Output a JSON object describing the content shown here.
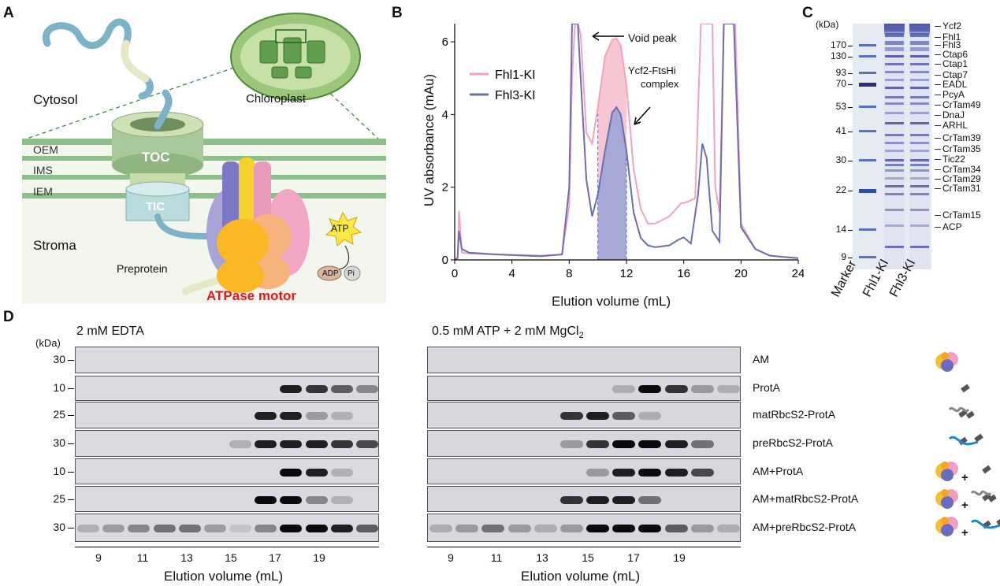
{
  "panelA": {
    "letter": "A",
    "cytosol": "Cytosol",
    "chloroplast": "Chloroplast",
    "oem": "OEM",
    "ims": "IMS",
    "iem": "IEM",
    "toc": "TOC",
    "tic": "TIC",
    "stroma": "Stroma",
    "preprotein": "Preprotein",
    "atp": "ATP",
    "adp": "ADP",
    "pi": "Pi",
    "motor": "ATPase motor",
    "colors": {
      "motor_label": "#e8161b",
      "membrane": "#8cc08a",
      "toc": "#a9c99a"
    }
  },
  "panelB": {
    "letter": "B",
    "annot_void": "Void peak",
    "annot_complex_1": "Ycf2-FtsHi",
    "annot_complex_2": "complex",
    "chart_data": {
      "type": "line",
      "xlabel": "Elution volume (mL)",
      "ylabel": "UV absorbance (mAu)",
      "xlim": [
        0,
        24
      ],
      "ylim": [
        0,
        6.5
      ],
      "xticks": [
        "0",
        "4",
        "8",
        "12",
        "16",
        "20",
        "24"
      ],
      "yticks": [
        "0",
        "2",
        "4",
        "6"
      ],
      "legend_position": "top-left",
      "series": [
        {
          "name": "Fhl1-KI",
          "color": "#f4a3b8",
          "x": [
            0,
            0.2,
            0.3,
            0.5,
            1,
            3,
            6,
            7.5,
            8,
            8.2,
            8.4,
            8.6,
            8.8,
            9.2,
            9.6,
            10,
            10.5,
            11,
            11.3,
            11.6,
            12,
            12.5,
            13,
            13.5,
            14,
            15,
            15.8,
            16.3,
            16.8,
            17.2,
            17.6,
            18,
            18.2,
            18.5,
            18.8,
            19,
            19.3,
            19.6,
            20,
            21,
            22,
            23,
            24
          ],
          "values": [
            0,
            0.05,
            1.35,
            0.2,
            0.18,
            0.15,
            0.12,
            0.15,
            1.5,
            5,
            6.5,
            6.5,
            6.2,
            3.5,
            3.2,
            4.2,
            5.6,
            6.05,
            6.1,
            5.9,
            4.8,
            2.5,
            1.4,
            1.0,
            1.0,
            1.2,
            1.55,
            1.6,
            1.7,
            6.5,
            6.5,
            6.5,
            2.0,
            1.3,
            6.5,
            6.5,
            6.5,
            6.5,
            1.0,
            0.3,
            0.12,
            0.08,
            0.05
          ]
        },
        {
          "name": "Fhl3-KI",
          "color": "#6a6fb5",
          "x": [
            0,
            0.2,
            0.3,
            0.5,
            1,
            3,
            6,
            7.5,
            8,
            8.2,
            8.4,
            8.6,
            8.8,
            9.2,
            9.6,
            10,
            10.5,
            11,
            11.3,
            11.6,
            12,
            12.5,
            13,
            13.5,
            14,
            15,
            15.6,
            16,
            16.5,
            17,
            17.3,
            17.6,
            18,
            18.5,
            18.8,
            19,
            19.2,
            19.5,
            20,
            21,
            22,
            23,
            24
          ],
          "values": [
            0,
            0.05,
            0.8,
            0.3,
            0.2,
            0.15,
            0.1,
            0.15,
            2.0,
            6.5,
            6.5,
            6.5,
            5.0,
            2.2,
            1.2,
            1.8,
            3.0,
            4.05,
            4.2,
            4.0,
            3.0,
            1.3,
            0.6,
            0.4,
            0.35,
            0.4,
            0.55,
            0.62,
            0.45,
            1.8,
            3.2,
            2.8,
            0.8,
            0.5,
            6.5,
            6.5,
            6.5,
            6.5,
            0.9,
            0.3,
            0.12,
            0.08,
            0.05
          ]
        }
      ],
      "shaded_region": {
        "x": [
          10,
          12
        ]
      }
    }
  },
  "panelC": {
    "letter": "C",
    "kda": "(kDa)",
    "markers": [
      "170",
      "130",
      "93",
      "70",
      "53",
      "41",
      "30",
      "22",
      "14",
      "9"
    ],
    "lanes": [
      "Marker",
      "Fhl1-KI",
      "Fhl3-KI"
    ],
    "proteins": [
      "Ycf2",
      "Fhl1",
      "Fhl3",
      "Ctap6",
      "Ctap1",
      "Ctap7",
      "EADL",
      "PcyA",
      "CrTam49",
      "DnaJ",
      "ARHL",
      "CrTam39",
      "CrTam35",
      "Tic22",
      "CrTam34",
      "CrTam29",
      "CrTam31",
      "CrTam15",
      "ACP"
    ]
  },
  "panelD": {
    "letter": "D",
    "kda": "(kDa)",
    "left_title": "2 mM EDTA",
    "right_title_main": "0.5 mM ATP + 2 mM MgCl",
    "right_title_sub": "2",
    "row_kda": [
      "30",
      "10",
      "25",
      "30",
      "10",
      "25",
      "30"
    ],
    "rows": [
      "AM",
      "ProtA",
      "matRbcS2-ProtA",
      "preRbcS2-ProtA",
      "AM+ProtA",
      "AM+matRbcS2-ProtA",
      "AM+preRbcS2-ProtA"
    ],
    "x_ticks": [
      "9",
      "11",
      "13",
      "15",
      "17",
      "19"
    ],
    "xlabel": "Elution volume (mL)",
    "plus": "+"
  }
}
